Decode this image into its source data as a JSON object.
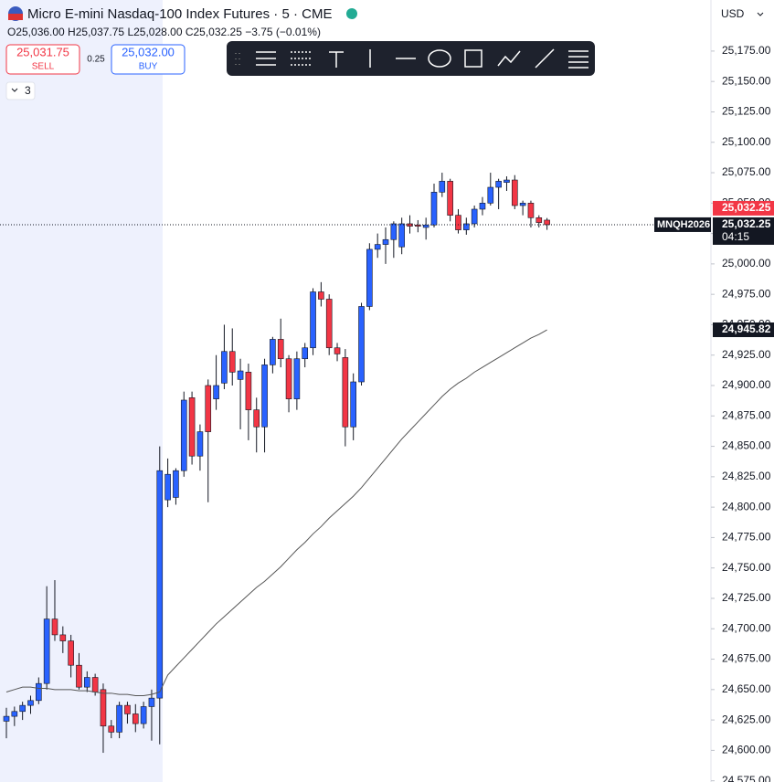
{
  "header": {
    "title": "Micro E-mini Nasdaq-100 Index Futures · 5 · CME",
    "ohlc_line": "O25,036.00 H25,037.75 L25,028.00 C25,032.25 −3.75 (−0.01%)",
    "sell_price": "25,031.75",
    "sell_label": "SELL",
    "spread": "0.25",
    "buy_price": "25,032.00",
    "buy_label": "BUY",
    "indicators_count": "3",
    "currency": "USD"
  },
  "chart_data": {
    "type": "candlestick",
    "up_color": "#2962ff",
    "down_color": "#f23645",
    "ohlc": [
      [
        24624,
        24635,
        24610,
        24628
      ],
      [
        24628,
        24636,
        24620,
        24632
      ],
      [
        24632,
        24640,
        24625,
        24637
      ],
      [
        24637,
        24645,
        24630,
        24641
      ],
      [
        24641,
        24660,
        24638,
        24655
      ],
      [
        24655,
        24735,
        24650,
        24708
      ],
      [
        24708,
        24740,
        24690,
        24695
      ],
      [
        24695,
        24702,
        24680,
        24690
      ],
      [
        24690,
        24695,
        24660,
        24670
      ],
      [
        24670,
        24680,
        24650,
        24652
      ],
      [
        24652,
        24665,
        24648,
        24660
      ],
      [
        24660,
        24663,
        24645,
        24648
      ],
      [
        24650,
        24655,
        24598,
        24620
      ],
      [
        24620,
        24625,
        24610,
        24615
      ],
      [
        24615,
        24640,
        24610,
        24637
      ],
      [
        24637,
        24640,
        24622,
        24630
      ],
      [
        24630,
        24638,
        24615,
        24622
      ],
      [
        24622,
        24640,
        24618,
        24636
      ],
      [
        24636,
        24650,
        24608,
        24643
      ],
      [
        24643,
        24850,
        24605,
        24830
      ],
      [
        24806,
        24840,
        24800,
        24827
      ],
      [
        24808,
        24832,
        24802,
        24830
      ],
      [
        24830,
        24895,
        24825,
        24888
      ],
      [
        24890,
        24895,
        24835,
        24842
      ],
      [
        24842,
        24868,
        24830,
        24862
      ],
      [
        24900,
        24905,
        24804,
        24862
      ],
      [
        24889,
        24925,
        24880,
        24900
      ],
      [
        24902,
        24950,
        24897,
        24928
      ],
      [
        24928,
        24947,
        24900,
        24911
      ],
      [
        24905,
        24922,
        24864,
        24912
      ],
      [
        24911,
        24918,
        24855,
        24880
      ],
      [
        24880,
        24890,
        24845,
        24866
      ],
      [
        24866,
        24922,
        24845,
        24917
      ],
      [
        24917,
        24940,
        24910,
        24938
      ],
      [
        24938,
        24955,
        24915,
        24922
      ],
      [
        24922,
        24925,
        24878,
        24889
      ],
      [
        24889,
        24928,
        24880,
        24922
      ],
      [
        24922,
        24935,
        24915,
        24931
      ],
      [
        24931,
        24980,
        24925,
        24977
      ],
      [
        24977,
        24985,
        24965,
        24971
      ],
      [
        24971,
        24975,
        24925,
        24931
      ],
      [
        24931,
        24935,
        24920,
        24926
      ],
      [
        24923,
        24930,
        24850,
        24866
      ],
      [
        24866,
        24910,
        24855,
        24903
      ],
      [
        24903,
        24968,
        24900,
        24965
      ],
      [
        24965,
        25017,
        24962,
        25012
      ],
      [
        25012,
        25025,
        25005,
        25016
      ],
      [
        25016,
        25030,
        25000,
        25020
      ],
      [
        25020,
        25035,
        25005,
        25033
      ],
      [
        25014,
        25038,
        25008,
        25033
      ],
      [
        25033,
        25040,
        25025,
        25031
      ],
      [
        25032,
        25036,
        25026,
        25031
      ],
      [
        25030,
        25038,
        25020,
        25032
      ],
      [
        25032,
        25066,
        25030,
        25059
      ],
      [
        25059,
        25075,
        25055,
        25068
      ],
      [
        25068,
        25070,
        25035,
        25040
      ],
      [
        25040,
        25045,
        25025,
        25028
      ],
      [
        25028,
        25038,
        25024,
        25033
      ],
      [
        25033,
        25048,
        25030,
        25045
      ],
      [
        25045,
        25055,
        25040,
        25050
      ],
      [
        25050,
        25075,
        25048,
        25063
      ],
      [
        25063,
        25070,
        25045,
        25068
      ],
      [
        25067,
        25072,
        25060,
        25069
      ],
      [
        25069,
        25073,
        25045,
        25048
      ],
      [
        25048,
        25052,
        25040,
        25050
      ],
      [
        25050,
        25052,
        25030,
        25038
      ],
      [
        25038,
        25040,
        25030,
        25034
      ],
      [
        25036,
        25037.75,
        25028,
        25032.25
      ]
    ],
    "moving_average": {
      "color": "#555555",
      "values": [
        24648,
        24650,
        24652,
        24652,
        24651,
        24651,
        24650,
        24650,
        24650,
        24649,
        24649,
        24648,
        24647,
        24647,
        24646,
        24646,
        24645,
        24645,
        24646,
        24648,
        24662,
        24669,
        24676,
        24683,
        24690,
        24697,
        24704,
        24710,
        24716,
        24722,
        24728,
        24734,
        24739,
        24745,
        24751,
        24758,
        24765,
        24771,
        24778,
        24784,
        24791,
        24797,
        24803,
        24809,
        24816,
        24824,
        24832,
        24840,
        24848,
        24856,
        24863,
        24870,
        24877,
        24884,
        24891,
        24897,
        24902,
        24906,
        24911,
        24915,
        24919,
        24923,
        24927,
        24931,
        24935,
        24939,
        24942,
        24945.82
      ]
    },
    "last_price": {
      "value": 25032.25,
      "label": "25,032.25"
    },
    "symbol": "MNQH2026",
    "countdown": "04:15",
    "ma_price": {
      "value": 24945.82,
      "label": "24,945.82"
    },
    "ylim": [
      24574,
      25217
    ],
    "yticks": [
      {
        "value": 25175,
        "label": "25,175.00"
      },
      {
        "value": 25150,
        "label": "25,150.00"
      },
      {
        "value": 25125,
        "label": "25,125.00"
      },
      {
        "value": 25100,
        "label": "25,100.00"
      },
      {
        "value": 25075,
        "label": "25,075.00"
      },
      {
        "value": 25050,
        "label": "25,050.00"
      },
      {
        "value": 25025,
        "label": "25,025.00"
      },
      {
        "value": 25000,
        "label": "25,000.00"
      },
      {
        "value": 24975,
        "label": "24,975.00"
      },
      {
        "value": 24950,
        "label": "24,950.00"
      },
      {
        "value": 24925,
        "label": "24,925.00"
      },
      {
        "value": 24900,
        "label": "24,900.00"
      },
      {
        "value": 24875,
        "label": "24,875.00"
      },
      {
        "value": 24850,
        "label": "24,850.00"
      },
      {
        "value": 24825,
        "label": "24,825.00"
      },
      {
        "value": 24800,
        "label": "24,800.00"
      },
      {
        "value": 24775,
        "label": "24,775.00"
      },
      {
        "value": 24750,
        "label": "24,750.00"
      },
      {
        "value": 24725,
        "label": "24,725.00"
      },
      {
        "value": 24700,
        "label": "24,700.00"
      },
      {
        "value": 24675,
        "label": "24,675.00"
      },
      {
        "value": 24650,
        "label": "24,650.00"
      },
      {
        "value": 24625,
        "label": "24,625.00"
      },
      {
        "value": 24600,
        "label": "24,600.00"
      },
      {
        "value": 24575,
        "label": "24,575.00"
      }
    ]
  }
}
